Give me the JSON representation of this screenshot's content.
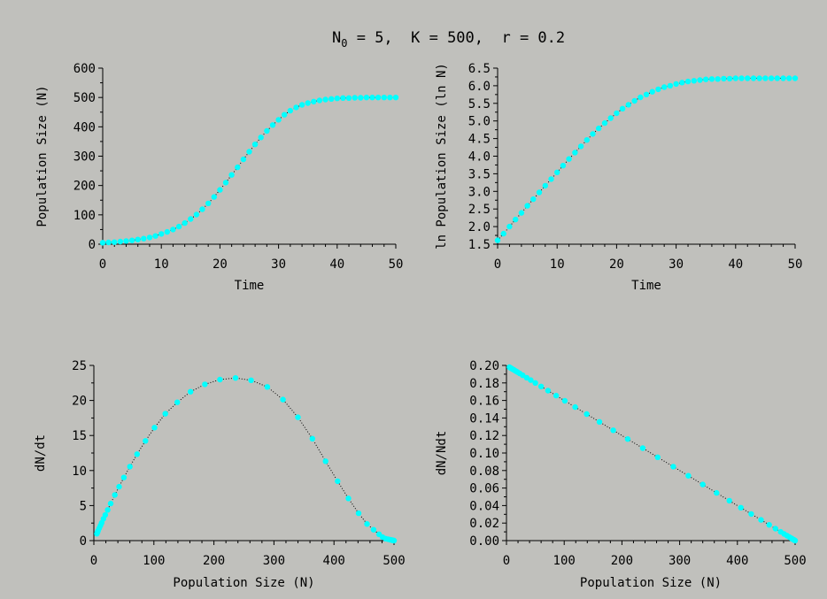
{
  "title": {
    "prefix": "N",
    "sub": "0",
    "rest": " = 5,  K = 500,  r = 0.2"
  },
  "marker_color": "#00ffff",
  "curve_color": "#000000",
  "chart_data": [
    {
      "type": "scatter",
      "id": "n-vs-time",
      "xlabel": "Time",
      "ylabel": "Population Size (N)",
      "xlim": [
        0,
        50
      ],
      "ylim": [
        0,
        600
      ],
      "xticks": [
        0,
        10,
        20,
        30,
        40,
        50
      ],
      "yticks": [
        0,
        100,
        200,
        300,
        400,
        500,
        600
      ],
      "ytick_labels": [
        "0",
        "100",
        "200",
        "300",
        "400",
        "500",
        "600"
      ],
      "x": [
        0,
        1,
        2,
        3,
        4,
        5,
        6,
        7,
        8,
        9,
        10,
        11,
        12,
        13,
        14,
        15,
        16,
        17,
        18,
        19,
        20,
        21,
        22,
        23,
        24,
        25,
        26,
        27,
        28,
        29,
        30,
        31,
        32,
        33,
        34,
        35,
        36,
        37,
        38,
        39,
        40,
        41,
        42,
        43,
        44,
        45,
        46,
        47,
        48,
        49,
        50
      ],
      "y": [
        5,
        6,
        7,
        9,
        11,
        13,
        16,
        19,
        23,
        28,
        35,
        42,
        50,
        60,
        72,
        86,
        101,
        119,
        139,
        161,
        185,
        210,
        236,
        262,
        289,
        315,
        340,
        364,
        386,
        406,
        424,
        441,
        455,
        466,
        475,
        481,
        486,
        490,
        493,
        495,
        497,
        498,
        498,
        499,
        499,
        500,
        500,
        500,
        500,
        500,
        500
      ]
    },
    {
      "type": "scatter",
      "id": "lnn-vs-time",
      "xlabel": "Time",
      "ylabel": "ln Population Size (ln N)",
      "xlim": [
        0,
        50
      ],
      "ylim": [
        1.5,
        6.5
      ],
      "xticks": [
        0,
        10,
        20,
        30,
        40,
        50
      ],
      "yticks": [
        1.5,
        2.0,
        2.5,
        3.0,
        3.5,
        4.0,
        4.5,
        5.0,
        5.5,
        6.0,
        6.5
      ],
      "ytick_labels": [
        "1.5",
        "2.0",
        "2.5",
        "3.0",
        "3.5",
        "4.0",
        "4.5",
        "5.0",
        "5.5",
        "6.0",
        "6.5"
      ],
      "x": [
        0,
        1,
        2,
        3,
        4,
        5,
        6,
        7,
        8,
        9,
        10,
        11,
        12,
        13,
        14,
        15,
        16,
        17,
        18,
        19,
        20,
        21,
        22,
        23,
        24,
        25,
        26,
        27,
        28,
        29,
        30,
        31,
        32,
        33,
        34,
        35,
        36,
        37,
        38,
        39,
        40,
        41,
        42,
        43,
        44,
        45,
        46,
        47,
        48,
        49,
        50
      ],
      "y": [
        1.61,
        1.8,
        2.0,
        2.2,
        2.39,
        2.59,
        2.78,
        2.97,
        3.16,
        3.35,
        3.54,
        3.73,
        3.92,
        4.1,
        4.28,
        4.46,
        4.63,
        4.79,
        4.94,
        5.08,
        5.22,
        5.35,
        5.46,
        5.57,
        5.67,
        5.75,
        5.83,
        5.9,
        5.96,
        6.0,
        6.05,
        6.09,
        6.12,
        6.14,
        6.16,
        6.18,
        6.19,
        6.19,
        6.2,
        6.2,
        6.21,
        6.21,
        6.21,
        6.21,
        6.21,
        6.21,
        6.21,
        6.21,
        6.21,
        6.21,
        6.21
      ]
    },
    {
      "type": "scatter",
      "id": "dndt-vs-n",
      "xlabel": "Population Size (N)",
      "ylabel": "dN/dt",
      "xlim": [
        0,
        500
      ],
      "ylim": [
        0,
        25
      ],
      "xticks": [
        0,
        100,
        200,
        300,
        400,
        500
      ],
      "yticks": [
        0,
        5,
        10,
        15,
        20,
        25
      ],
      "ytick_labels": [
        "0",
        "5",
        "10",
        "15",
        "20",
        "25"
      ],
      "x": [
        5,
        6,
        7,
        9,
        11,
        13,
        16,
        19,
        23,
        28,
        35,
        42,
        50,
        60,
        72,
        86,
        101,
        119,
        139,
        161,
        185,
        210,
        236,
        262,
        289,
        315,
        340,
        364,
        386,
        406,
        424,
        441,
        455,
        466,
        475,
        481,
        486,
        490,
        493,
        495,
        497,
        498,
        499,
        500
      ],
      "y": [
        0.99,
        1.19,
        1.39,
        1.77,
        2.15,
        2.53,
        3.1,
        3.66,
        4.38,
        5.29,
        6.51,
        7.69,
        9.0,
        10.56,
        12.33,
        14.23,
        16.12,
        18.1,
        19.73,
        21.25,
        22.3,
        22.98,
        23.21,
        22.88,
        21.93,
        20.12,
        17.6,
        14.55,
        11.33,
        8.47,
        6.02,
        3.9,
        2.37,
        1.55,
        0.91,
        0.49,
        0.28,
        0.2,
        0.14,
        0.1,
        0.06,
        0.04,
        0.02,
        0.0
      ]
    },
    {
      "type": "scatter",
      "id": "dnndt-vs-n",
      "xlabel": "Population Size (N)",
      "ylabel": "dN/Ndt",
      "xlim": [
        0,
        500
      ],
      "ylim": [
        0,
        0.2
      ],
      "xticks": [
        0,
        100,
        200,
        300,
        400,
        500
      ],
      "yticks": [
        0,
        0.02,
        0.04,
        0.06,
        0.08,
        0.1,
        0.12,
        0.14,
        0.16,
        0.18,
        0.2
      ],
      "ytick_labels": [
        "0.00",
        "0.02",
        "0.04",
        "0.06",
        "0.08",
        "0.10",
        "0.12",
        "0.14",
        "0.16",
        "0.18",
        "0.20"
      ],
      "x": [
        5,
        6,
        7,
        9,
        11,
        13,
        16,
        19,
        23,
        28,
        35,
        42,
        50,
        60,
        72,
        86,
        101,
        119,
        139,
        161,
        185,
        210,
        236,
        262,
        289,
        315,
        340,
        364,
        386,
        406,
        424,
        441,
        455,
        466,
        475,
        481,
        486,
        490,
        493,
        495,
        497,
        498,
        499,
        500
      ],
      "y": [
        0.198,
        0.1976,
        0.1972,
        0.1964,
        0.1956,
        0.1948,
        0.1936,
        0.1924,
        0.1908,
        0.1888,
        0.186,
        0.1832,
        0.18,
        0.176,
        0.1712,
        0.1656,
        0.1596,
        0.1524,
        0.1444,
        0.1356,
        0.126,
        0.116,
        0.1056,
        0.0952,
        0.0844,
        0.074,
        0.064,
        0.0544,
        0.0456,
        0.0376,
        0.0304,
        0.0236,
        0.018,
        0.0136,
        0.01,
        0.0076,
        0.0056,
        0.004,
        0.0028,
        0.002,
        0.0012,
        0.0008,
        0.0004,
        0.0
      ]
    }
  ]
}
